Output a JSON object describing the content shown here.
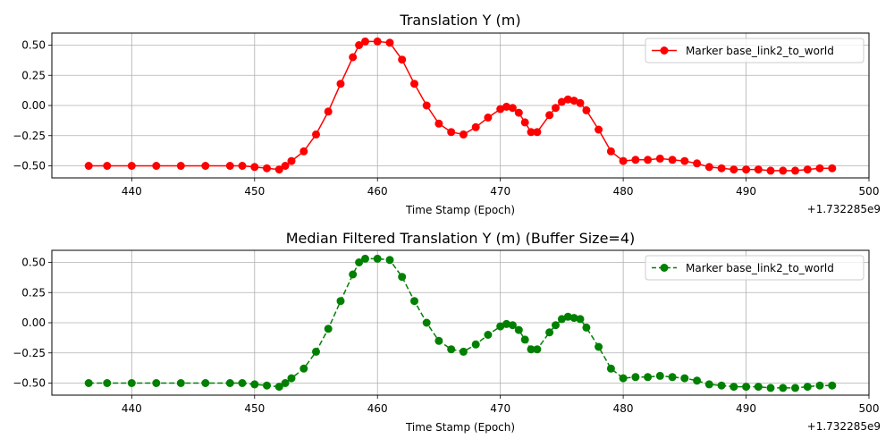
{
  "chart_data": [
    {
      "type": "line",
      "title": "Translation Y (m)",
      "xlabel": "Time Stamp (Epoch)",
      "ylabel": "",
      "x_offset_label": "+1.732285e9",
      "xlim": [
        433.5,
        500
      ],
      "ylim": [
        -0.6,
        0.6
      ],
      "xticks": [
        440,
        450,
        460,
        470,
        480,
        490,
        500
      ],
      "yticks": [
        -0.5,
        -0.25,
        0.0,
        0.25,
        0.5
      ],
      "xtick_labels": [
        "440",
        "450",
        "460",
        "470",
        "480",
        "490",
        "500"
      ],
      "ytick_labels": [
        "−0.50",
        "−0.25",
        "0.00",
        "0.25",
        "0.50"
      ],
      "grid": true,
      "legend_position": "top-right",
      "series": [
        {
          "name": "Marker base_link2_to_world",
          "color": "#ff0000",
          "line_style": "solid",
          "marker": "circle",
          "x": [
            436.5,
            438,
            440,
            442,
            444,
            446,
            448,
            449,
            450,
            451,
            452,
            452.5,
            453,
            454,
            455,
            456,
            457,
            458,
            458.5,
            459,
            460,
            461,
            462,
            463,
            464,
            465,
            466,
            467,
            468,
            469,
            470,
            470.5,
            471,
            471.5,
            472,
            472.5,
            473,
            474,
            474.5,
            475,
            475.5,
            476,
            476.5,
            477,
            478,
            479,
            480,
            481,
            482,
            483,
            484,
            485,
            486,
            487,
            488,
            489,
            490,
            491,
            492,
            493,
            494,
            495,
            496,
            497
          ],
          "y": [
            -0.5,
            -0.5,
            -0.5,
            -0.5,
            -0.5,
            -0.5,
            -0.5,
            -0.5,
            -0.51,
            -0.52,
            -0.53,
            -0.5,
            -0.46,
            -0.38,
            -0.24,
            -0.05,
            0.18,
            0.4,
            0.5,
            0.53,
            0.53,
            0.52,
            0.38,
            0.18,
            0.0,
            -0.15,
            -0.22,
            -0.24,
            -0.18,
            -0.1,
            -0.03,
            -0.01,
            -0.02,
            -0.06,
            -0.14,
            -0.22,
            -0.22,
            -0.08,
            -0.02,
            0.03,
            0.05,
            0.04,
            0.02,
            -0.04,
            -0.2,
            -0.38,
            -0.46,
            -0.45,
            -0.45,
            -0.44,
            -0.45,
            -0.46,
            -0.48,
            -0.51,
            -0.52,
            -0.53,
            -0.53,
            -0.53,
            -0.54,
            -0.54,
            -0.54,
            -0.53,
            -0.52,
            -0.52
          ]
        }
      ]
    },
    {
      "type": "line",
      "title": "Median Filtered Translation Y (m) (Buffer Size=4)",
      "xlabel": "Time Stamp (Epoch)",
      "ylabel": "",
      "x_offset_label": "+1.732285e9",
      "xlim": [
        433.5,
        500
      ],
      "ylim": [
        -0.6,
        0.6
      ],
      "xticks": [
        440,
        450,
        460,
        470,
        480,
        490,
        500
      ],
      "yticks": [
        -0.5,
        -0.25,
        0.0,
        0.25,
        0.5
      ],
      "xtick_labels": [
        "440",
        "450",
        "460",
        "470",
        "480",
        "490",
        "500"
      ],
      "ytick_labels": [
        "−0.50",
        "−0.25",
        "0.00",
        "0.25",
        "0.50"
      ],
      "grid": true,
      "legend_position": "top-right",
      "series": [
        {
          "name": "Marker base_link2_to_world",
          "color": "#008000",
          "line_style": "dashed",
          "marker": "circle",
          "x": [
            436.5,
            438,
            440,
            442,
            444,
            446,
            448,
            449,
            450,
            451,
            452,
            452.5,
            453,
            454,
            455,
            456,
            457,
            458,
            458.5,
            459,
            460,
            461,
            462,
            463,
            464,
            465,
            466,
            467,
            468,
            469,
            470,
            470.5,
            471,
            471.5,
            472,
            472.5,
            473,
            474,
            474.5,
            475,
            475.5,
            476,
            476.5,
            477,
            478,
            479,
            480,
            481,
            482,
            483,
            484,
            485,
            486,
            487,
            488,
            489,
            490,
            491,
            492,
            493,
            494,
            495,
            496,
            497
          ],
          "y": [
            -0.5,
            -0.5,
            -0.5,
            -0.5,
            -0.5,
            -0.5,
            -0.5,
            -0.5,
            -0.51,
            -0.52,
            -0.53,
            -0.5,
            -0.46,
            -0.38,
            -0.24,
            -0.05,
            0.18,
            0.4,
            0.5,
            0.53,
            0.53,
            0.52,
            0.38,
            0.18,
            0.0,
            -0.15,
            -0.22,
            -0.24,
            -0.18,
            -0.1,
            -0.03,
            -0.01,
            -0.02,
            -0.06,
            -0.14,
            -0.22,
            -0.22,
            -0.08,
            -0.02,
            0.03,
            0.05,
            0.04,
            0.03,
            -0.04,
            -0.2,
            -0.38,
            -0.46,
            -0.45,
            -0.45,
            -0.44,
            -0.45,
            -0.46,
            -0.48,
            -0.51,
            -0.52,
            -0.53,
            -0.53,
            -0.53,
            -0.54,
            -0.54,
            -0.54,
            -0.53,
            -0.52,
            -0.52
          ]
        }
      ]
    }
  ]
}
